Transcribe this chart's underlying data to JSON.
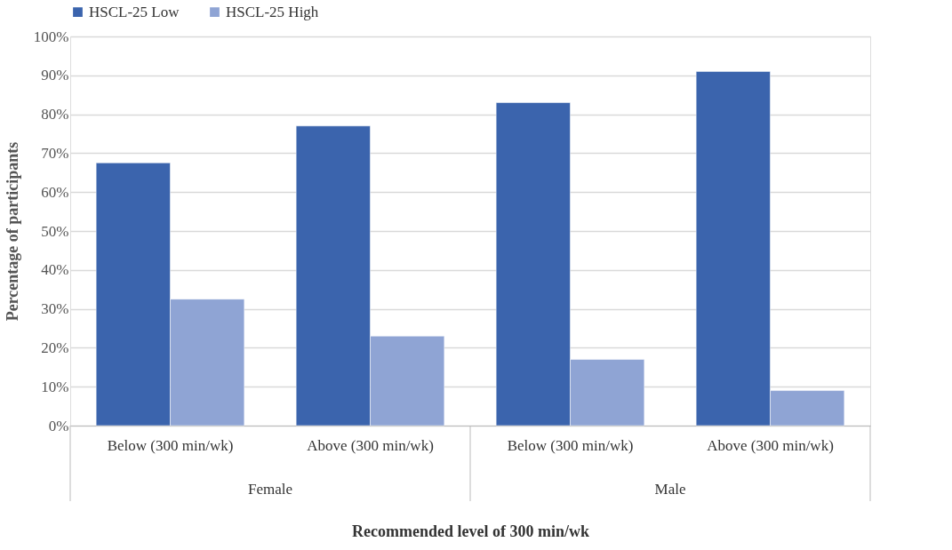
{
  "chart_data": {
    "type": "bar",
    "xlabel": "Recommended level of 300 min/wk",
    "ylabel": "Percentage of participants",
    "categories": [
      "Below (300 min/wk)",
      "Above (300 min/wk)",
      "Below (300 min/wk)",
      "Above (300 min/wk)"
    ],
    "series": [
      {
        "name": "HSCL-25 Low",
        "color": "#3b64ad",
        "values": [
          67.5,
          77,
          83,
          91
        ]
      },
      {
        "name": "HSCL-25 High",
        "color": "#8fa4d4",
        "values": [
          32.5,
          23,
          17,
          9
        ]
      }
    ],
    "ylim": [
      0,
      100
    ],
    "yticks": [
      {
        "value": 0,
        "label": "0%"
      },
      {
        "value": 10,
        "label": "10%"
      },
      {
        "value": 20,
        "label": "20%"
      },
      {
        "value": 30,
        "label": "30%"
      },
      {
        "value": 40,
        "label": "40%"
      },
      {
        "value": 50,
        "label": "50%"
      },
      {
        "value": 60,
        "label": "60%"
      },
      {
        "value": 70,
        "label": "70%"
      },
      {
        "value": 80,
        "label": "80%"
      },
      {
        "value": 90,
        "label": "90%"
      },
      {
        "value": 100,
        "label": "100%"
      }
    ],
    "annotations": [
      "Female",
      "Male"
    ],
    "grid": "y",
    "legend": "top"
  }
}
